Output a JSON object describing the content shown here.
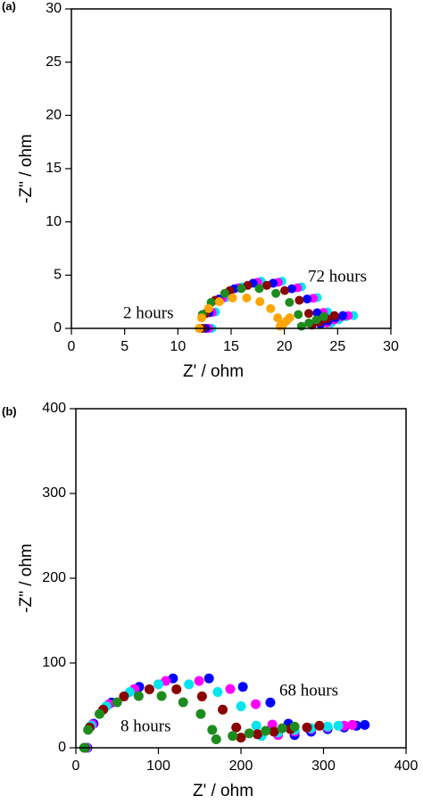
{
  "chart_data": [
    {
      "type": "scatter",
      "label": "(a)",
      "xlabel": "Z' / ohm",
      "ylabel": "-Z\" / ohm",
      "xlim": [
        0,
        30
      ],
      "ylim": [
        0,
        30
      ],
      "xticks": [
        0,
        5,
        10,
        15,
        20,
        25,
        30
      ],
      "yticks": [
        0,
        5,
        10,
        15,
        20,
        25,
        30
      ],
      "annotations": [
        "2 hours",
        "72 hours"
      ],
      "series": [
        {
          "color": "#00e5ee",
          "x": [
            13.2,
            13.54,
            14.51,
            16.0,
            17.83,
            19.77,
            21.6,
            23.09,
            24.06,
            24.4,
            25.1,
            25.8,
            26.5
          ],
          "values": [
            0,
            1.54,
            2.89,
            3.9,
            4.43,
            4.43,
            3.9,
            2.89,
            1.54,
            0.5,
            0.8,
            1.1,
            1.2
          ]
        },
        {
          "color": "#ff00ff",
          "x": [
            12.9,
            13.23,
            14.2,
            15.68,
            17.48,
            19.42,
            21.23,
            22.7,
            23.67,
            24.0,
            24.7,
            25.4,
            26.0
          ],
          "values": [
            0,
            1.5,
            2.83,
            3.81,
            4.33,
            4.33,
            3.81,
            2.83,
            1.5,
            0.5,
            0.8,
            1.1,
            1.2
          ]
        },
        {
          "color": "#0000ff",
          "x": [
            12.6,
            12.92,
            13.86,
            15.3,
            17.06,
            18.94,
            20.7,
            22.14,
            23.08,
            23.4,
            24.1,
            24.8,
            25.5
          ],
          "values": [
            0,
            1.47,
            2.76,
            3.72,
            4.24,
            4.24,
            3.72,
            2.76,
            1.47,
            0.4,
            0.7,
            1.0,
            1.2
          ]
        },
        {
          "color": "#8b0000",
          "x": [
            12.3,
            12.61,
            13.5,
            14.88,
            16.55,
            18.35,
            20.03,
            21.4,
            22.29,
            22.6,
            23.3,
            24.0,
            24.7
          ],
          "values": [
            0,
            1.4,
            2.64,
            3.55,
            4.04,
            4.04,
            3.55,
            2.64,
            1.4,
            0.3,
            0.6,
            0.9,
            1.2
          ]
        },
        {
          "color": "#1e8b1e",
          "x": [
            12.0,
            12.29,
            13.12,
            14.4,
            15.96,
            17.64,
            19.2,
            20.48,
            21.31,
            21.6,
            22.3,
            23.0,
            23.7
          ],
          "values": [
            0,
            1.3,
            2.44,
            3.29,
            3.74,
            3.74,
            3.29,
            2.44,
            1.3,
            0.2,
            0.5,
            0.8,
            1.1
          ]
        },
        {
          "color": "#ffa500",
          "x": [
            12.0,
            12.23,
            12.89,
            13.9,
            15.14,
            16.46,
            17.7,
            18.71,
            19.37,
            19.6,
            19.9,
            20.2,
            20.5
          ],
          "values": [
            0,
            0.99,
            1.86,
            2.51,
            2.86,
            2.86,
            2.51,
            1.86,
            0.99,
            0.2,
            0.4,
            0.7,
            1.0
          ]
        }
      ]
    },
    {
      "type": "scatter",
      "label": "(b)",
      "xlabel": "Z' / ohm",
      "ylabel": "-Z\" / ohm",
      "xlim": [
        0,
        400
      ],
      "ylim": [
        0,
        400
      ],
      "xticks": [
        0,
        100,
        200,
        300,
        400
      ],
      "yticks": [
        0,
        100,
        200,
        300,
        400
      ],
      "annotations": [
        "8 hours",
        "68 hours"
      ],
      "series": [
        {
          "color": "#0000ff",
          "x": [
            14,
            21.5,
            43.4,
            76.8,
            117.7,
            161.3,
            202.3,
            235.6,
            257.5,
            265,
            285,
            305,
            325,
            340,
            350
          ],
          "values": [
            0,
            28.4,
            53.4,
            71.9,
            81.8,
            81.8,
            71.9,
            53.4,
            28.4,
            15,
            19,
            22,
            24,
            26,
            27
          ]
        },
        {
          "color": "#ff00ff",
          "x": [
            13,
            20,
            40.1,
            71,
            108.8,
            149.2,
            187,
            217.9,
            238,
            245,
            265,
            285,
            305,
            325,
            335
          ],
          "values": [
            0,
            27.4,
            51.4,
            69.3,
            78.8,
            78.8,
            69.3,
            51.4,
            27.4,
            15,
            19,
            22,
            24,
            26,
            27
          ]
        },
        {
          "color": "#00e5ee",
          "x": [
            12,
            18.4,
            36.9,
            65.3,
            100,
            137,
            171.8,
            200.1,
            218.6,
            225,
            245,
            265,
            285,
            305,
            318
          ],
          "values": [
            0,
            26.0,
            48.9,
            65.8,
            74.9,
            74.9,
            65.8,
            48.9,
            26.0,
            14,
            18,
            21,
            23,
            25,
            26
          ]
        },
        {
          "color": "#8b0000",
          "x": [
            11,
            16.7,
            33.1,
            58.3,
            89.1,
            121.9,
            152.8,
            177.9,
            194.3,
            200,
            220,
            240,
            260,
            280,
            295
          ],
          "values": [
            0,
            23.9,
            45.0,
            60.6,
            69.0,
            69.0,
            60.6,
            45.0,
            23.9,
            12,
            16,
            19,
            22,
            24,
            26
          ]
        },
        {
          "color": "#1e8b1e",
          "x": [
            10,
            14.8,
            28.7,
            50,
            76.1,
            103.9,
            130,
            151.3,
            165.2,
            170,
            190,
            210,
            230,
            250,
            265
          ],
          "values": [
            0,
            21.2,
            39.9,
            53.7,
            61.1,
            61.1,
            53.7,
            39.9,
            21.2,
            10,
            14,
            17,
            20,
            23,
            25
          ]
        }
      ]
    }
  ]
}
